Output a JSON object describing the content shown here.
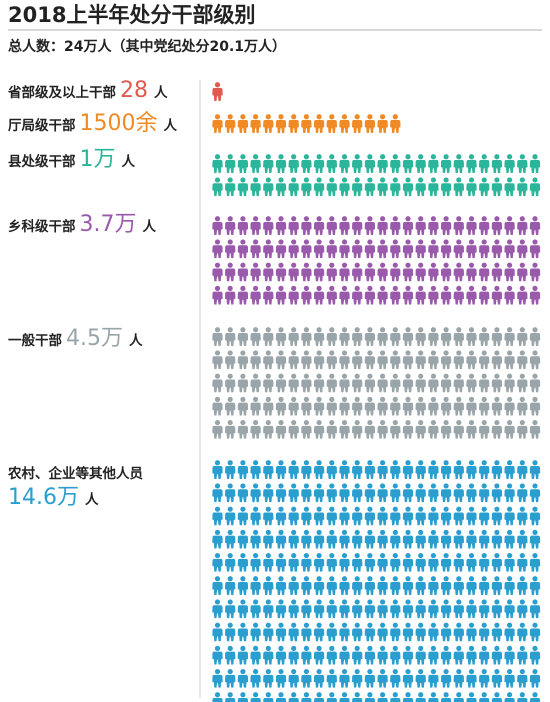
{
  "chart_data": {
    "type": "pictograph",
    "title": "2018上半年处分干部级别",
    "subtitle": "总人数：24万人（其中党纪处分20.1万人）",
    "unit": "人",
    "categories": [
      {
        "label": "省部级及以上干部",
        "value_text": "28",
        "color": "#e05a4f",
        "icons": 1,
        "rows": 1
      },
      {
        "label": "厅局级干部",
        "value_text": "1500余",
        "color": "#ef8a25",
        "icons": 15,
        "rows": 1
      },
      {
        "label": "县处级干部",
        "value_text": "1万",
        "color": "#2bb59a",
        "icons": 52,
        "rows": 2
      },
      {
        "label": "乡科级干部",
        "value_text": "3.7万",
        "color": "#9a5aab",
        "icons": 104,
        "rows": 4
      },
      {
        "label": "一般干部",
        "value_text": "4.5万",
        "color": "#9aa5aa",
        "icons": 130,
        "rows": 5
      },
      {
        "label": "农村、企业等其他人员",
        "value_text": "14.6万",
        "color": "#2a9fcf",
        "icons": 312,
        "rows": 12
      }
    ]
  }
}
